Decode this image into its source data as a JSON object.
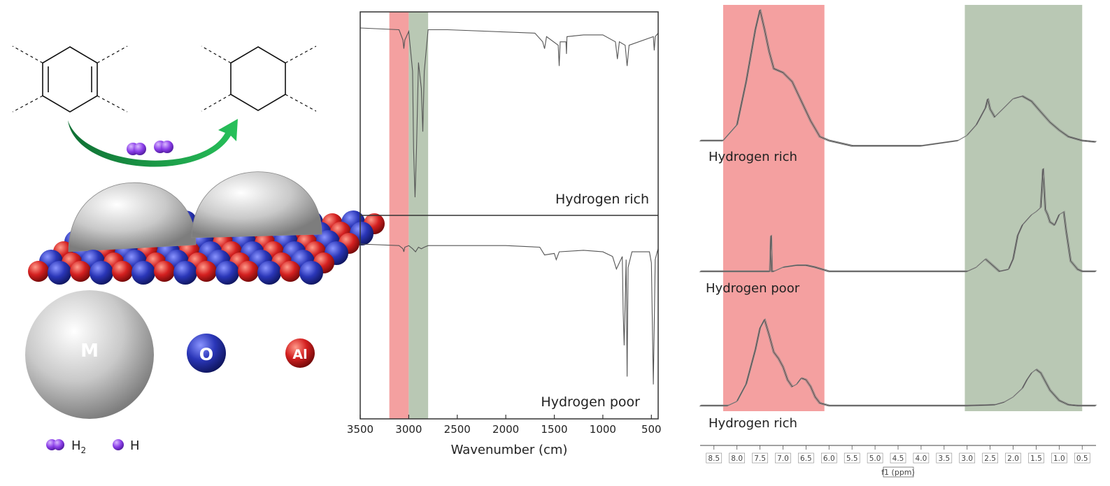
{
  "schematic": {
    "legend": {
      "h2_label": "H",
      "h2_sub": "2",
      "h_label": "H"
    },
    "spheres": {
      "metal": "M",
      "oxygen": "O",
      "aluminum": "Al"
    },
    "colors": {
      "arrow": "#1a9a4a",
      "hydrogen": "#8a3de8",
      "metal": "#c8c8c8",
      "oxygen": "#2a36b8",
      "aluminum": "#d42020"
    }
  },
  "chart_data": [
    {
      "type": "line",
      "xlabel": "Wavenumber (cm)",
      "xlim": [
        3500,
        430
      ],
      "x_reversed": true,
      "xticks": [
        3500,
        3000,
        2500,
        2000,
        1500,
        1000,
        500
      ],
      "bands": [
        {
          "from": 3200,
          "to": 3000,
          "color": "#f4a0a0"
        },
        {
          "from": 3000,
          "to": 2800,
          "color": "#b9c8b4"
        }
      ],
      "panels": [
        {
          "label": "Hydrogen rich",
          "series": {
            "x": [
              3500,
              3100,
              3060,
              3050,
              3040,
              3000,
              2960,
              2950,
              2935,
              2920,
              2900,
              2870,
              2855,
              2840,
              2800,
              2600,
              1700,
              1620,
              1600,
              1580,
              1460,
              1450,
              1440,
              1380,
              1375,
              1370,
              1200,
              1000,
              870,
              850,
              830,
              770,
              750,
              730,
              480,
              470,
              460,
              430
            ],
            "y": [
              1.0,
              0.99,
              0.93,
              0.88,
              0.93,
              0.98,
              0.75,
              0.3,
              0.02,
              0.3,
              0.8,
              0.65,
              0.4,
              0.75,
              0.99,
              0.99,
              0.97,
              0.92,
              0.88,
              0.95,
              0.9,
              0.78,
              0.92,
              0.92,
              0.85,
              0.95,
              0.96,
              0.96,
              0.92,
              0.82,
              0.92,
              0.9,
              0.78,
              0.9,
              0.95,
              0.87,
              0.95,
              0.97
            ]
          }
        },
        {
          "label": "Hydrogen poor",
          "series": {
            "x": [
              3500,
              3100,
              3060,
              3050,
              3040,
              3000,
              2960,
              2930,
              2900,
              2870,
              2840,
              2800,
              2500,
              2000,
              1650,
              1600,
              1500,
              1480,
              1450,
              1200,
              1000,
              900,
              880,
              860,
              800,
              790,
              780,
              760,
              750,
              740,
              700,
              520,
              500,
              480,
              460,
              440,
              430
            ],
            "y": [
              1.0,
              0.99,
              0.97,
              0.95,
              0.98,
              0.99,
              0.97,
              0.95,
              0.98,
              0.97,
              0.98,
              0.99,
              0.99,
              0.99,
              0.98,
              0.93,
              0.94,
              0.9,
              0.95,
              0.96,
              0.95,
              0.92,
              0.88,
              0.84,
              0.92,
              0.56,
              0.35,
              0.9,
              0.15,
              0.85,
              0.95,
              0.95,
              0.88,
              0.1,
              0.9,
              0.95,
              0.97
            ]
          }
        }
      ]
    },
    {
      "type": "line",
      "xlabel": "f1 (ppm)",
      "xlim": [
        8.8,
        0.2
      ],
      "x_reversed": true,
      "xticks": [
        8.5,
        8.0,
        7.5,
        7.0,
        6.5,
        6.0,
        5.5,
        5.0,
        4.5,
        4.0,
        3.5,
        3.0,
        2.5,
        2.0,
        1.5,
        1.0,
        0.5
      ],
      "xtick_labels": [
        "8.5",
        "8.0",
        "7.5",
        "7.0",
        "6.5",
        "6.0",
        "5.5",
        "5.0",
        "4.5",
        "4.0",
        "3.5",
        "3.0",
        "2.5",
        "2.0",
        "1.5",
        "1.0",
        "0.5"
      ],
      "bands": [
        {
          "from": 8.3,
          "to": 6.1,
          "color": "#f4a0a0"
        },
        {
          "from": 3.05,
          "to": 0.5,
          "color": "#b9c8b4"
        }
      ],
      "panels": [
        {
          "label": "Hydrogen rich",
          "series": {
            "x": [
              8.8,
              8.3,
              8.0,
              7.8,
              7.6,
              7.5,
              7.4,
              7.3,
              7.2,
              7.0,
              6.8,
              6.6,
              6.4,
              6.2,
              6.0,
              5.5,
              4.0,
              3.2,
              3.0,
              2.8,
              2.6,
              2.55,
              2.5,
              2.4,
              2.2,
              2.0,
              1.8,
              1.6,
              1.4,
              1.2,
              1.0,
              0.8,
              0.5,
              0.2
            ],
            "y": [
              0.0,
              0.0,
              0.12,
              0.45,
              0.85,
              1.0,
              0.85,
              0.68,
              0.55,
              0.52,
              0.45,
              0.3,
              0.15,
              0.03,
              0.0,
              -0.04,
              -0.04,
              0.0,
              0.04,
              0.12,
              0.25,
              0.32,
              0.24,
              0.18,
              0.25,
              0.32,
              0.34,
              0.3,
              0.22,
              0.14,
              0.08,
              0.03,
              0.0,
              -0.01
            ]
          }
        },
        {
          "label": "Hydrogen poor",
          "series": {
            "x": [
              8.8,
              7.4,
              7.28,
              7.26,
              7.24,
              7.2,
              7.0,
              6.7,
              6.5,
              6.3,
              6.0,
              5.0,
              3.0,
              2.8,
              2.6,
              2.5,
              2.3,
              2.1,
              2.0,
              1.9,
              1.8,
              1.7,
              1.6,
              1.5,
              1.4,
              1.35,
              1.3,
              1.25,
              1.2,
              1.1,
              1.0,
              0.9,
              0.85,
              0.75,
              0.6,
              0.5,
              0.2
            ],
            "y": [
              0.0,
              0.0,
              0.0,
              0.35,
              0.0,
              0.0,
              0.04,
              0.06,
              0.06,
              0.04,
              0.0,
              0.0,
              0.0,
              0.04,
              0.12,
              0.08,
              0.0,
              0.02,
              0.12,
              0.35,
              0.45,
              0.5,
              0.55,
              0.58,
              0.62,
              1.0,
              0.6,
              0.55,
              0.48,
              0.45,
              0.55,
              0.58,
              0.4,
              0.1,
              0.02,
              0.0,
              0.0
            ]
          }
        },
        {
          "label": "Hydrogen rich",
          "series": {
            "x": [
              8.8,
              8.2,
              8.0,
              7.8,
              7.6,
              7.5,
              7.4,
              7.3,
              7.2,
              7.1,
              7.0,
              6.9,
              6.8,
              6.7,
              6.6,
              6.5,
              6.4,
              6.3,
              6.2,
              6.0,
              3.0,
              2.4,
              2.2,
              2.0,
              1.8,
              1.7,
              1.6,
              1.5,
              1.4,
              1.3,
              1.2,
              1.0,
              0.8,
              0.6,
              0.2
            ],
            "y": [
              0.0,
              0.0,
              0.05,
              0.25,
              0.65,
              0.9,
              1.0,
              0.82,
              0.62,
              0.55,
              0.45,
              0.3,
              0.22,
              0.25,
              0.32,
              0.3,
              0.22,
              0.1,
              0.03,
              0.0,
              0.0,
              0.01,
              0.04,
              0.1,
              0.2,
              0.3,
              0.38,
              0.42,
              0.38,
              0.28,
              0.18,
              0.06,
              0.01,
              0.0,
              0.0
            ]
          }
        }
      ]
    }
  ]
}
